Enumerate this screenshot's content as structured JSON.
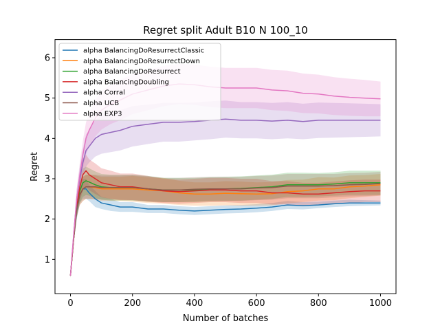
{
  "chart_data": {
    "type": "line",
    "title": "Regret split Adult B10 N 100_10",
    "xlabel": "Number of batches",
    "ylabel": "Regret",
    "xlim": [
      -50,
      1050
    ],
    "ylim": [
      0.15,
      6.45
    ],
    "xticks": [
      0,
      200,
      400,
      600,
      800,
      1000
    ],
    "yticks": [
      1,
      2,
      3,
      4,
      5,
      6
    ],
    "legend_position": "top-left",
    "grid": false,
    "series": [
      {
        "name": "alpha BalancingDoResurrectClassic",
        "color": "#1f77b4",
        "x": [
          0,
          10,
          20,
          30,
          40,
          50,
          60,
          80,
          100,
          130,
          160,
          200,
          250,
          300,
          350,
          400,
          450,
          500,
          550,
          600,
          650,
          700,
          750,
          800,
          850,
          900,
          950,
          1000
        ],
        "mean": [
          0.6,
          1.5,
          2.2,
          2.6,
          2.75,
          2.75,
          2.65,
          2.5,
          2.4,
          2.35,
          2.3,
          2.3,
          2.25,
          2.25,
          2.22,
          2.2,
          2.22,
          2.24,
          2.25,
          2.27,
          2.3,
          2.35,
          2.33,
          2.35,
          2.38,
          2.4,
          2.4,
          2.4
        ],
        "lower": [
          0.55,
          1.4,
          2.0,
          2.4,
          2.5,
          2.5,
          2.45,
          2.3,
          2.25,
          2.2,
          2.18,
          2.18,
          2.15,
          2.15,
          2.12,
          2.1,
          2.12,
          2.14,
          2.15,
          2.17,
          2.2,
          2.25,
          2.24,
          2.27,
          2.3,
          2.32,
          2.33,
          2.34
        ],
        "upper": [
          0.65,
          1.6,
          2.4,
          2.8,
          3.0,
          3.0,
          2.85,
          2.7,
          2.55,
          2.5,
          2.42,
          2.42,
          2.35,
          2.35,
          2.32,
          2.3,
          2.32,
          2.34,
          2.35,
          2.37,
          2.4,
          2.45,
          2.42,
          2.43,
          2.46,
          2.48,
          2.47,
          2.46
        ]
      },
      {
        "name": "alpha BalancingDoResurrectDown",
        "color": "#ff7f0e",
        "x": [
          0,
          10,
          20,
          30,
          40,
          50,
          60,
          80,
          100,
          130,
          160,
          200,
          250,
          300,
          350,
          400,
          450,
          500,
          550,
          600,
          650,
          700,
          750,
          800,
          850,
          900,
          950,
          1000
        ],
        "mean": [
          0.6,
          1.5,
          2.25,
          2.6,
          2.75,
          2.8,
          2.8,
          2.78,
          2.75,
          2.75,
          2.75,
          2.75,
          2.72,
          2.7,
          2.65,
          2.62,
          2.62,
          2.64,
          2.63,
          2.62,
          2.63,
          2.68,
          2.7,
          2.75,
          2.75,
          2.8,
          2.82,
          2.85
        ],
        "lower": [
          0.55,
          1.4,
          2.05,
          2.35,
          2.45,
          2.5,
          2.5,
          2.48,
          2.45,
          2.45,
          2.45,
          2.43,
          2.4,
          2.38,
          2.35,
          2.33,
          2.33,
          2.34,
          2.33,
          2.33,
          2.34,
          2.39,
          2.42,
          2.46,
          2.47,
          2.52,
          2.55,
          2.58
        ],
        "upper": [
          0.65,
          1.6,
          2.45,
          2.85,
          3.05,
          3.1,
          3.1,
          3.08,
          3.05,
          3.05,
          3.05,
          3.07,
          3.04,
          3.02,
          2.95,
          2.91,
          2.91,
          2.94,
          2.93,
          2.91,
          2.92,
          2.97,
          2.98,
          3.04,
          3.03,
          3.08,
          3.09,
          3.12
        ]
      },
      {
        "name": "alpha BalancingDoResurrect",
        "color": "#2ca02c",
        "x": [
          0,
          10,
          20,
          30,
          40,
          50,
          60,
          80,
          100,
          130,
          160,
          200,
          250,
          300,
          350,
          400,
          450,
          500,
          550,
          600,
          650,
          700,
          750,
          800,
          850,
          900,
          950,
          1000
        ],
        "mean": [
          0.6,
          1.5,
          2.3,
          2.7,
          2.9,
          2.95,
          2.92,
          2.85,
          2.8,
          2.78,
          2.78,
          2.78,
          2.75,
          2.72,
          2.72,
          2.72,
          2.74,
          2.75,
          2.76,
          2.78,
          2.8,
          2.85,
          2.85,
          2.85,
          2.87,
          2.9,
          2.9,
          2.9
        ],
        "lower": [
          0.55,
          1.4,
          2.05,
          2.4,
          2.55,
          2.6,
          2.58,
          2.52,
          2.48,
          2.46,
          2.46,
          2.46,
          2.43,
          2.42,
          2.42,
          2.42,
          2.44,
          2.45,
          2.46,
          2.48,
          2.5,
          2.55,
          2.55,
          2.56,
          2.58,
          2.6,
          2.6,
          2.6
        ],
        "upper": [
          0.65,
          1.6,
          2.55,
          3.0,
          3.25,
          3.3,
          3.26,
          3.18,
          3.12,
          3.1,
          3.1,
          3.1,
          3.07,
          3.02,
          3.02,
          3.02,
          3.04,
          3.05,
          3.06,
          3.08,
          3.1,
          3.15,
          3.15,
          3.14,
          3.16,
          3.2,
          3.2,
          3.2
        ]
      },
      {
        "name": "alpha BalancingDoubling",
        "color": "#d62728",
        "x": [
          0,
          10,
          20,
          30,
          40,
          50,
          60,
          80,
          100,
          130,
          160,
          200,
          250,
          300,
          350,
          400,
          450,
          500,
          550,
          600,
          650,
          700,
          750,
          800,
          850,
          900,
          950,
          1000
        ],
        "mean": [
          0.6,
          1.5,
          2.3,
          2.8,
          3.1,
          3.2,
          3.1,
          3.0,
          2.9,
          2.85,
          2.8,
          2.8,
          2.75,
          2.7,
          2.68,
          2.7,
          2.72,
          2.72,
          2.7,
          2.7,
          2.65,
          2.65,
          2.62,
          2.62,
          2.65,
          2.68,
          2.7,
          2.7
        ],
        "lower": [
          0.55,
          1.4,
          2.05,
          2.45,
          2.7,
          2.8,
          2.72,
          2.62,
          2.54,
          2.5,
          2.47,
          2.47,
          2.43,
          2.4,
          2.38,
          2.4,
          2.42,
          2.42,
          2.4,
          2.4,
          2.36,
          2.36,
          2.34,
          2.34,
          2.37,
          2.4,
          2.42,
          2.42
        ],
        "upper": [
          0.65,
          1.6,
          2.55,
          3.15,
          3.5,
          3.6,
          3.48,
          3.38,
          3.26,
          3.2,
          3.13,
          3.13,
          3.07,
          3.0,
          2.98,
          3.0,
          3.02,
          3.02,
          3.0,
          3.0,
          2.94,
          2.94,
          2.9,
          2.9,
          2.93,
          2.96,
          2.98,
          2.98
        ]
      },
      {
        "name": "alpha Corral",
        "color": "#9467bd",
        "x": [
          0,
          10,
          20,
          30,
          40,
          50,
          60,
          80,
          100,
          130,
          160,
          200,
          250,
          300,
          350,
          400,
          450,
          500,
          550,
          600,
          650,
          700,
          750,
          800,
          850,
          900,
          950,
          1000
        ],
        "mean": [
          0.6,
          1.6,
          2.5,
          3.0,
          3.4,
          3.7,
          3.8,
          4.0,
          4.1,
          4.15,
          4.2,
          4.3,
          4.35,
          4.4,
          4.4,
          4.42,
          4.45,
          4.48,
          4.45,
          4.45,
          4.43,
          4.45,
          4.42,
          4.45,
          4.45,
          4.45,
          4.45,
          4.45
        ],
        "lower": [
          0.55,
          1.45,
          2.25,
          2.7,
          3.05,
          3.3,
          3.4,
          3.55,
          3.62,
          3.66,
          3.7,
          3.8,
          3.86,
          3.92,
          3.92,
          3.95,
          3.98,
          4.02,
          4.0,
          4.0,
          3.98,
          4.0,
          3.98,
          4.01,
          4.02,
          4.03,
          4.04,
          4.05
        ],
        "upper": [
          0.65,
          1.75,
          2.75,
          3.3,
          3.75,
          4.1,
          4.2,
          4.45,
          4.58,
          4.64,
          4.7,
          4.8,
          4.84,
          4.88,
          4.88,
          4.89,
          4.92,
          4.94,
          4.9,
          4.9,
          4.88,
          4.9,
          4.86,
          4.89,
          4.88,
          4.87,
          4.86,
          4.85
        ]
      },
      {
        "name": "alpha UCB",
        "color": "#8c564b",
        "x": [
          0,
          10,
          20,
          30,
          40,
          50,
          60,
          80,
          100,
          130,
          160,
          200,
          250,
          300,
          350,
          400,
          450,
          500,
          550,
          600,
          650,
          700,
          750,
          800,
          850,
          900,
          950,
          1000
        ],
        "mean": [
          0.6,
          1.5,
          2.25,
          2.6,
          2.75,
          2.8,
          2.8,
          2.8,
          2.78,
          2.78,
          2.78,
          2.78,
          2.75,
          2.72,
          2.72,
          2.74,
          2.75,
          2.75,
          2.75,
          2.77,
          2.78,
          2.82,
          2.82,
          2.82,
          2.83,
          2.85,
          2.86,
          2.88
        ],
        "lower": [
          0.55,
          1.4,
          2.05,
          2.35,
          2.45,
          2.5,
          2.5,
          2.5,
          2.48,
          2.48,
          2.48,
          2.47,
          2.44,
          2.42,
          2.42,
          2.44,
          2.45,
          2.45,
          2.45,
          2.47,
          2.48,
          2.52,
          2.52,
          2.52,
          2.54,
          2.56,
          2.57,
          2.59
        ],
        "upper": [
          0.65,
          1.6,
          2.45,
          2.85,
          3.05,
          3.1,
          3.1,
          3.1,
          3.08,
          3.08,
          3.08,
          3.09,
          3.06,
          3.02,
          3.02,
          3.04,
          3.05,
          3.05,
          3.05,
          3.07,
          3.08,
          3.12,
          3.12,
          3.12,
          3.12,
          3.14,
          3.15,
          3.17
        ]
      },
      {
        "name": "alpha EXP3",
        "color": "#e377c2",
        "x": [
          0,
          10,
          20,
          30,
          40,
          50,
          60,
          80,
          100,
          130,
          160,
          200,
          250,
          300,
          350,
          400,
          450,
          500,
          550,
          600,
          650,
          700,
          750,
          800,
          850,
          900,
          950,
          1000
        ],
        "mean": [
          0.6,
          1.6,
          2.5,
          3.1,
          3.6,
          4.0,
          4.2,
          4.5,
          4.7,
          4.85,
          4.95,
          5.1,
          5.2,
          5.3,
          5.35,
          5.33,
          5.28,
          5.25,
          5.25,
          5.25,
          5.2,
          5.18,
          5.12,
          5.1,
          5.05,
          5.02,
          5.0,
          4.98
        ],
        "lower": [
          0.55,
          1.45,
          2.25,
          2.8,
          3.25,
          3.6,
          3.78,
          4.05,
          4.22,
          4.36,
          4.45,
          4.6,
          4.7,
          4.8,
          4.85,
          4.83,
          4.78,
          4.75,
          4.75,
          4.75,
          4.7,
          4.68,
          4.63,
          4.62,
          4.58,
          4.56,
          4.55,
          4.55
        ],
        "upper": [
          0.65,
          1.75,
          2.75,
          3.4,
          3.95,
          4.4,
          4.62,
          4.95,
          5.18,
          5.34,
          5.45,
          5.6,
          5.7,
          5.8,
          5.85,
          5.83,
          5.78,
          5.75,
          5.75,
          5.75,
          5.7,
          5.68,
          5.61,
          5.58,
          5.52,
          5.48,
          5.45,
          5.41
        ]
      }
    ]
  }
}
